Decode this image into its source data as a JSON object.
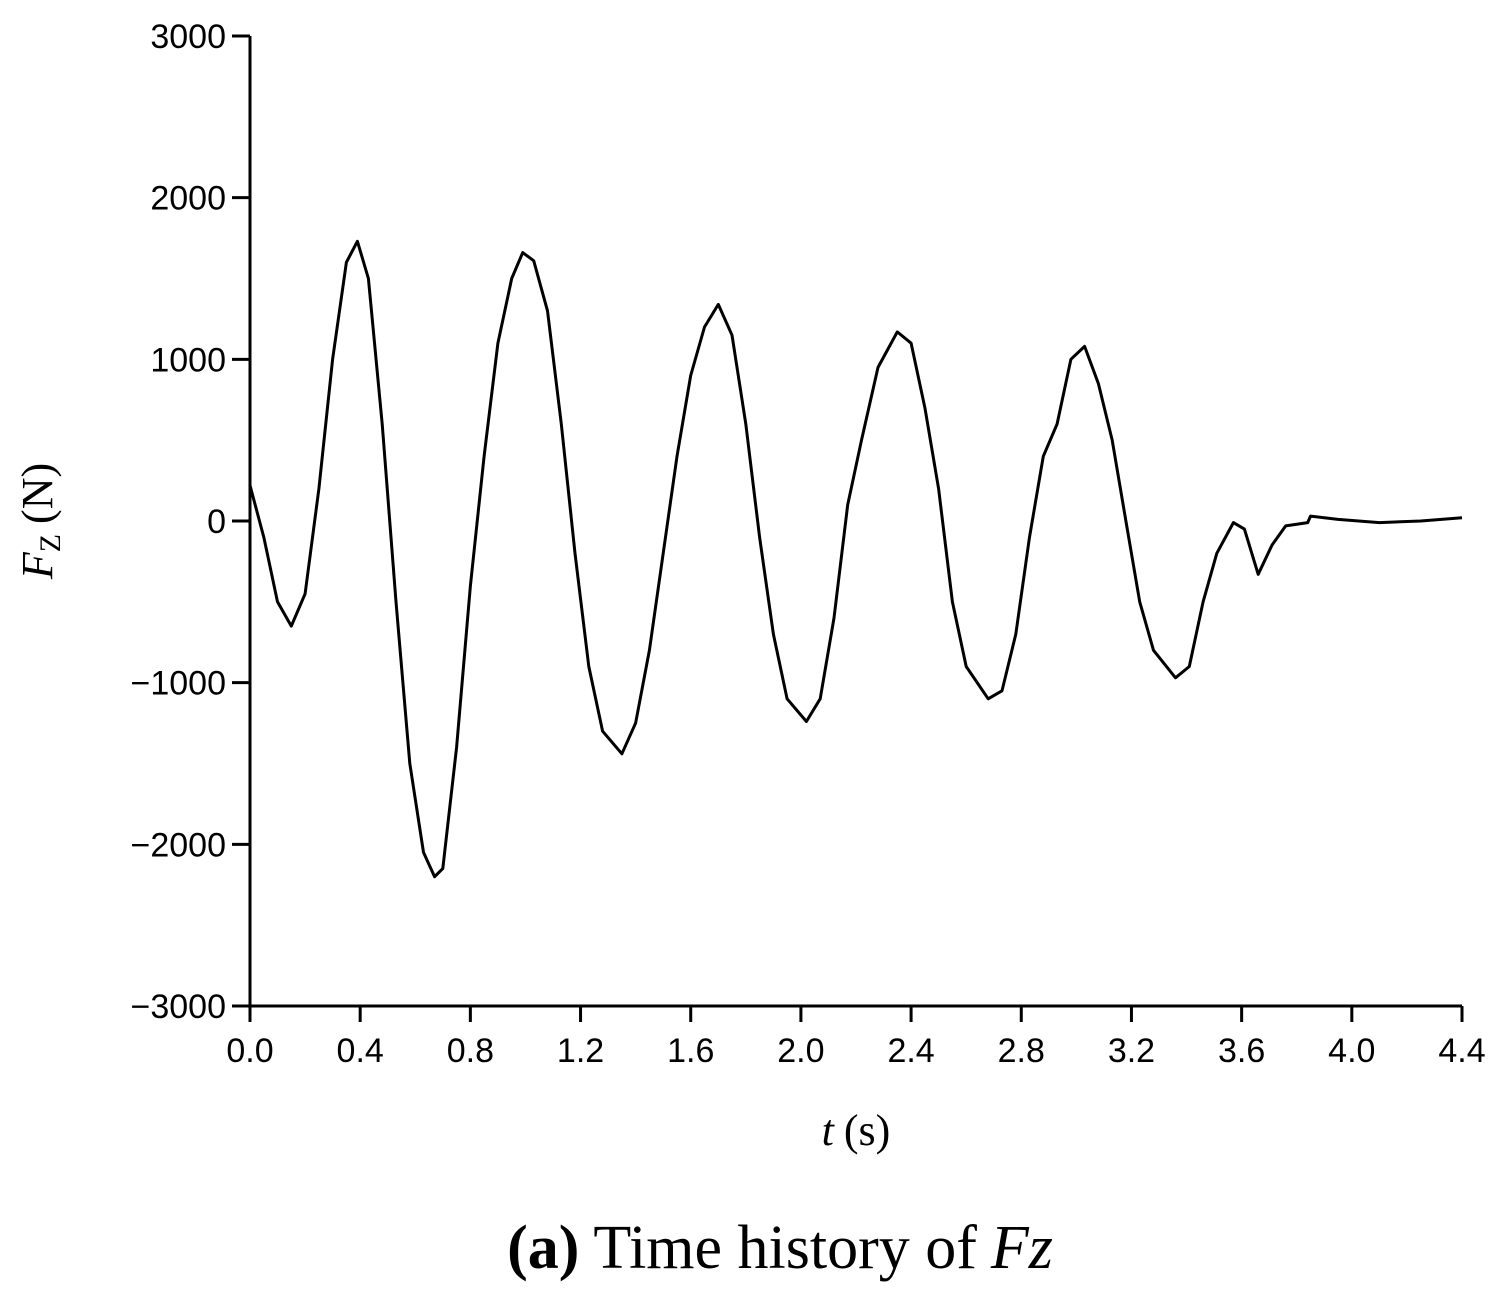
{
  "chart_data": {
    "type": "line",
    "y_label": {
      "symbol": "F",
      "subscript": "Z",
      "unit": "(N)"
    },
    "x_label": {
      "symbol": "t",
      "unit": "(s)"
    },
    "caption": {
      "panel": "(a)",
      "text": "Time history of",
      "symbol": "Fz"
    },
    "color": "#000000",
    "x": [
      0.0,
      0.05,
      0.1,
      0.15,
      0.2,
      0.25,
      0.3,
      0.35,
      0.39,
      0.43,
      0.48,
      0.53,
      0.58,
      0.63,
      0.67,
      0.7,
      0.75,
      0.8,
      0.85,
      0.9,
      0.95,
      0.99,
      1.03,
      1.08,
      1.13,
      1.18,
      1.23,
      1.28,
      1.35,
      1.4,
      1.45,
      1.5,
      1.55,
      1.6,
      1.65,
      1.7,
      1.75,
      1.8,
      1.85,
      1.9,
      1.95,
      2.02,
      2.07,
      2.12,
      2.17,
      2.22,
      2.28,
      2.35,
      2.4,
      2.45,
      2.5,
      2.55,
      2.6,
      2.68,
      2.73,
      2.78,
      2.83,
      2.88,
      2.93,
      2.98,
      3.03,
      3.08,
      3.13,
      3.18,
      3.23,
      3.28,
      3.36,
      3.41,
      3.46,
      3.51,
      3.57,
      3.61,
      3.66,
      3.71,
      3.76,
      3.84,
      3.85,
      3.95,
      4.1,
      4.25,
      4.4
    ],
    "values": [
      220,
      -100,
      -500,
      -650,
      -450,
      200,
      1000,
      1600,
      1730,
      1500,
      600,
      -500,
      -1500,
      -2050,
      -2200,
      -2150,
      -1400,
      -400,
      400,
      1100,
      1500,
      1660,
      1610,
      1300,
      600,
      -200,
      -900,
      -1300,
      -1440,
      -1250,
      -800,
      -200,
      400,
      900,
      1200,
      1340,
      1150,
      600,
      -100,
      -700,
      -1100,
      -1240,
      -1100,
      -600,
      100,
      500,
      950,
      1170,
      1100,
      700,
      200,
      -500,
      -900,
      -1100,
      -1050,
      -700,
      -100,
      400,
      600,
      1000,
      1080,
      850,
      500,
      0,
      -500,
      -800,
      -970,
      -900,
      -500,
      -200,
      -10,
      -50,
      -330,
      -150,
      -30,
      -10,
      30,
      10,
      -10,
      0,
      20
    ],
    "xlim": [
      0,
      4.4
    ],
    "ylim": [
      -3000,
      3000
    ],
    "xticks": [
      {
        "value": 0,
        "label": "0.0"
      },
      0.4,
      0.8,
      1.2,
      1.6,
      {
        "value": 2,
        "label": "2.0"
      },
      2.4,
      2.8,
      3.2,
      3.6,
      {
        "value": 4,
        "label": "4.0"
      },
      4.4
    ],
    "yticks": [
      {
        "value": -3000,
        "label": "−3000"
      },
      {
        "value": -2000,
        "label": "−2000"
      },
      {
        "value": -1000,
        "label": "−1000"
      },
      0,
      1000,
      2000,
      3000
    ]
  }
}
